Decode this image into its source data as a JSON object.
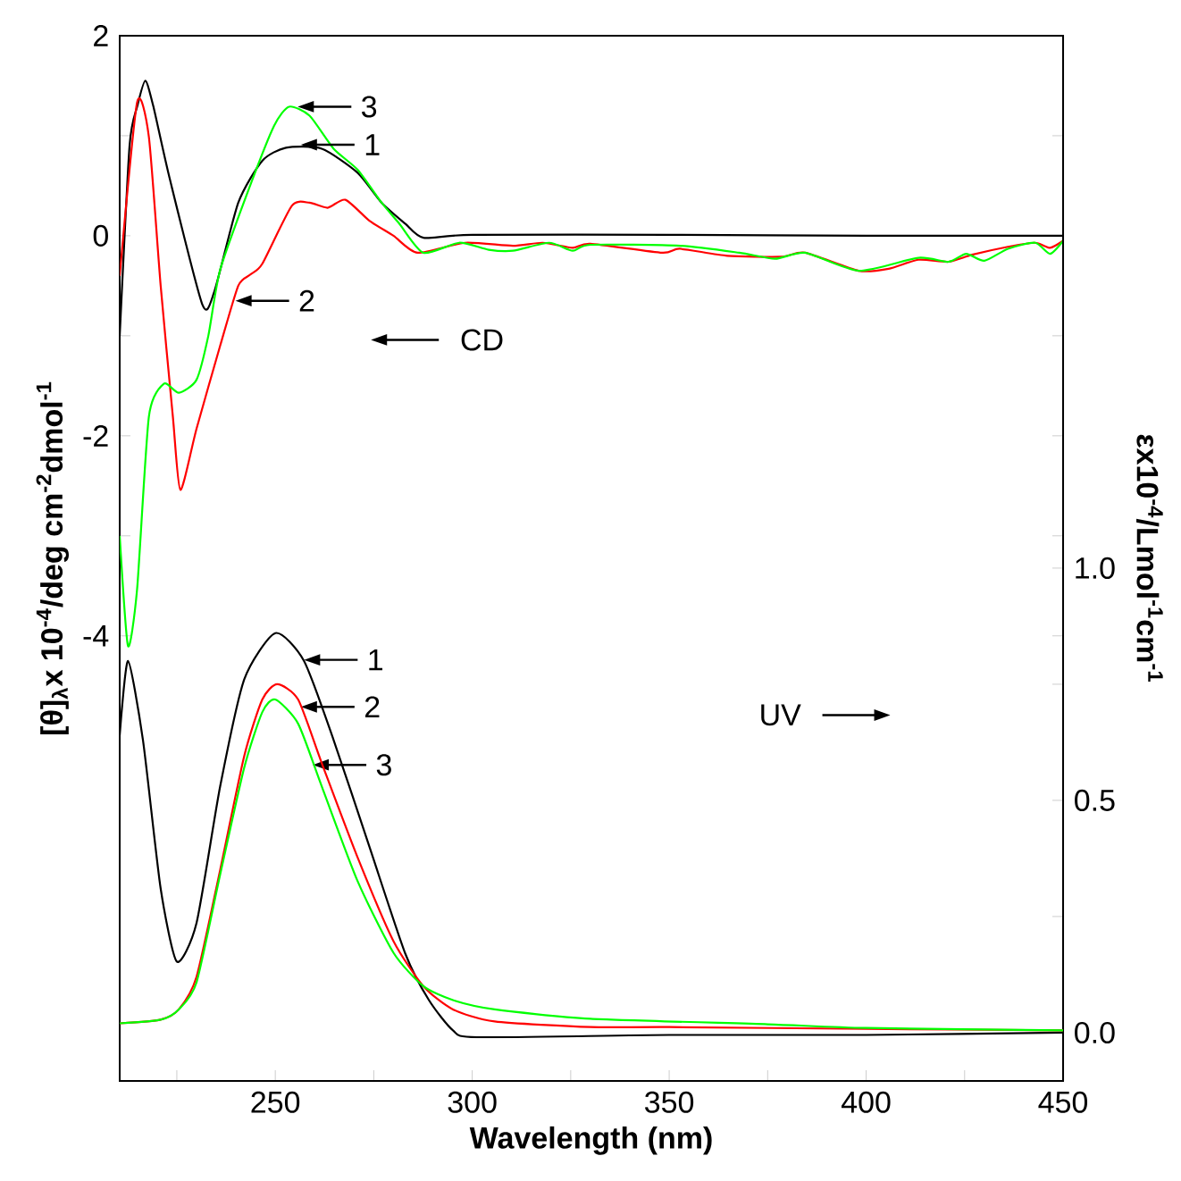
{
  "chart_data": {
    "type": "line",
    "xlabel": "Wavelength (nm)",
    "ylabel": "[θ]$_{λ}$x 10$^{-4}$/deg cm$^{-2}$dmol$^{-1}$",
    "y2label": "εx10$^{-4}$/Lmol$^{-1}$cm$^{-1}$",
    "xlim": [
      210.5,
      450
    ],
    "xticks": [
      {
        "value": 225,
        "label": null
      },
      250,
      {
        "value": 275,
        "label": null
      },
      300,
      {
        "value": 325,
        "label": null
      },
      350,
      {
        "value": 375,
        "label": null
      },
      400,
      {
        "value": 425,
        "label": null
      },
      450
    ],
    "ylim": [
      -8.45,
      2
    ],
    "yticks": [
      2,
      {
        "value": 1,
        "label": null
      },
      0,
      {
        "value": -1,
        "label": null
      },
      -2,
      {
        "value": -3,
        "label": null
      },
      -4
    ],
    "y2lim": [
      -0.104,
      2.146
    ],
    "y2ticks": [
      {
        "value": 0,
        "label": "0.0"
      },
      {
        "value": 0.25,
        "label": null
      },
      {
        "value": 0.5,
        "label": "0.5"
      },
      {
        "value": 0.75,
        "label": null
      },
      {
        "value": 1.0,
        "label": "1.0"
      }
    ],
    "series": [
      {
        "color": "#000000",
        "x": [
          210.5,
          213,
          215,
          217,
          219,
          223.2,
          231.5,
          234.5,
          240.6,
          246.7,
          252.7,
          261.8,
          270.9,
          277,
          283,
          287.6,
          300,
          350,
          400,
          450
        ],
        "values": [
          -1.0,
          0.9,
          1.3,
          1.55,
          1.3,
          0.57,
          -0.69,
          -0.56,
          0.33,
          0.75,
          0.88,
          0.87,
          0.63,
          0.33,
          0.12,
          -0.02,
          0.01,
          0.01,
          0.0,
          0.0
        ]
      },
      {
        "color": "#ff0000",
        "x": [
          210.5,
          214.9,
          217.9,
          220.9,
          224,
          225.9,
          230,
          236,
          240.6,
          243.6,
          246.7,
          254.2,
          258.7,
          263.3,
          267.8,
          273.9,
          280,
          286.1,
          298.2,
          310.3,
          317.9,
          325.5,
          330,
          348.2,
          352.7,
          364.8,
          378.4,
          384.5,
          398.1,
          405.7,
          413.3,
          420.9,
          426.9,
          436,
          442.9,
          446.7,
          450
        ],
        "values": [
          -0.4,
          1.33,
          0.99,
          -0.5,
          -1.81,
          -2.54,
          -1.93,
          -1.1,
          -0.5,
          -0.39,
          -0.28,
          0.3,
          0.33,
          0.28,
          0.36,
          0.15,
          0.0,
          -0.17,
          -0.07,
          -0.1,
          -0.07,
          -0.12,
          -0.08,
          -0.17,
          -0.13,
          -0.2,
          -0.21,
          -0.17,
          -0.35,
          -0.33,
          -0.24,
          -0.26,
          -0.19,
          -0.11,
          -0.07,
          -0.12,
          -0.05
        ]
      },
      {
        "color": "#00ff00",
        "x": [
          210.5,
          212.6,
          214.9,
          217.9,
          221.7,
          225.5,
          230,
          233,
          236,
          243.6,
          249.7,
          253.5,
          258.7,
          264.8,
          270.9,
          277,
          281.5,
          287.6,
          296.7,
          304.2,
          310.3,
          319.5,
          325.5,
          330,
          352.7,
          367.8,
          376.9,
          384.5,
          398.1,
          413.3,
          420.9,
          425.4,
          430,
          436,
          442.9,
          446.7,
          450
        ],
        "values": [
          -3.0,
          -4.1,
          -3.54,
          -1.81,
          -1.48,
          -1.57,
          -1.44,
          -1.0,
          -0.34,
          0.5,
          1.1,
          1.29,
          1.2,
          0.87,
          0.66,
          0.33,
          0.12,
          -0.17,
          -0.07,
          -0.14,
          -0.15,
          -0.07,
          -0.15,
          -0.09,
          -0.1,
          -0.17,
          -0.23,
          -0.17,
          -0.35,
          -0.22,
          -0.26,
          -0.18,
          -0.25,
          -0.13,
          -0.07,
          -0.18,
          -0.05
        ]
      },
      {
        "color": "#000000",
        "axis": "y2",
        "x": [
          210.5,
          212.6,
          216.4,
          220.9,
          225,
          230,
          236,
          242.1,
          250,
          257.3,
          264.8,
          273.9,
          283,
          289,
          295.1,
          301.2,
          350,
          400,
          450
        ],
        "values": [
          0.64,
          0.8,
          0.63,
          0.31,
          0.153,
          0.236,
          0.53,
          0.76,
          0.86,
          0.8,
          0.63,
          0.4,
          0.17,
          0.07,
          0.005,
          -0.01,
          -0.005,
          -0.005,
          0.0
        ]
      },
      {
        "color": "#ff0000",
        "axis": "y2",
        "x": [
          210.5,
          220.9,
          225.5,
          230,
          236,
          242.1,
          246.7,
          250.5,
          255.8,
          261.8,
          270.9,
          280,
          287.6,
          295.1,
          305.7,
          330,
          350,
          400,
          450
        ],
        "values": [
          0.02,
          0.028,
          0.05,
          0.12,
          0.35,
          0.595,
          0.717,
          0.75,
          0.717,
          0.58,
          0.377,
          0.197,
          0.1,
          0.05,
          0.024,
          0.012,
          0.012,
          0.008,
          0.005
        ]
      },
      {
        "color": "#00ff00",
        "axis": "y2",
        "x": [
          210.5,
          220.9,
          225.5,
          230,
          236,
          242.1,
          246.7,
          250,
          255.8,
          261.8,
          270.9,
          280,
          287.6,
          295.1,
          305.7,
          330,
          375,
          400,
          450
        ],
        "values": [
          0.02,
          0.028,
          0.05,
          0.108,
          0.34,
          0.57,
          0.69,
          0.717,
          0.665,
          0.53,
          0.326,
          0.172,
          0.1,
          0.07,
          0.05,
          0.03,
          0.018,
          0.01,
          0.005
        ]
      }
    ],
    "annotations": [
      {
        "text": "3",
        "x": 255.7,
        "y": 1.29
      },
      {
        "text": "1",
        "x": 256.5,
        "y": 0.91
      },
      {
        "text": "2",
        "x": 239.9,
        "y": -0.65
      },
      "CD",
      {
        "text": "1",
        "x": 257.3,
        "y": -4.24
      },
      {
        "text": "2",
        "x": 256.5,
        "y": -4.71
      },
      {
        "text": "3",
        "x": 259.5,
        "y": -5.29
      },
      "UV"
    ]
  }
}
